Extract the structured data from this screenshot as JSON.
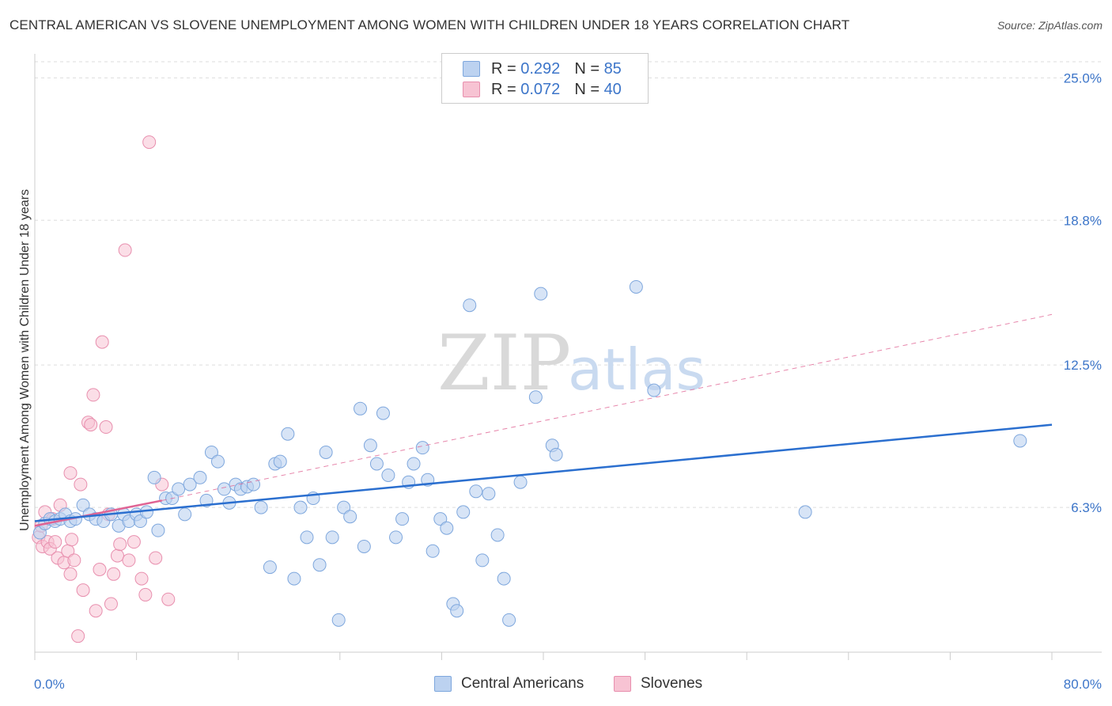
{
  "title": "CENTRAL AMERICAN VS SLOVENE UNEMPLOYMENT AMONG WOMEN WITH CHILDREN UNDER 18 YEARS CORRELATION CHART",
  "source": "Source: ZipAtlas.com",
  "watermark": {
    "zip": "ZIP",
    "atlas": "atlas"
  },
  "legend_top": [
    {
      "r_label": "R =",
      "r_value": "0.292",
      "n_label": "N =",
      "n_value": "85"
    },
    {
      "r_label": "R =",
      "r_value": "0.072",
      "n_label": "N =",
      "n_value": "40"
    }
  ],
  "chart_data": {
    "type": "scatter",
    "title": "CENTRAL AMERICAN VS SLOVENE UNEMPLOYMENT AMONG WOMEN WITH CHILDREN UNDER 18 YEARS CORRELATION CHART",
    "xlabel": "",
    "ylabel": "Unemployment Among Women with Children Under 18 years",
    "xlim": [
      0,
      80
    ],
    "ylim": [
      0,
      25.7
    ],
    "x_tick_labels": [
      "0.0%",
      "80.0%"
    ],
    "y_ticks": [
      6.3,
      12.5,
      18.8,
      25.0
    ],
    "y_tick_labels": [
      "6.3%",
      "12.5%",
      "18.8%",
      "25.0%"
    ],
    "grid": true,
    "legend_position": "bottom",
    "colors": {
      "blue_fill": "#bcd2f0",
      "blue_stroke": "#7ea7dd",
      "blue_line": "#2b6fcf",
      "pink_fill": "#f7c3d3",
      "pink_stroke": "#e88fae",
      "pink_line": "#e06494"
    },
    "series": [
      {
        "name": "Central Americans",
        "trend": {
          "x": [
            0,
            80
          ],
          "y": [
            5.7,
            9.9
          ],
          "dashed_to": null
        },
        "points": [
          [
            0.4,
            5.2
          ],
          [
            0.8,
            5.6
          ],
          [
            1.2,
            5.8
          ],
          [
            1.6,
            5.7
          ],
          [
            2,
            5.8
          ],
          [
            2.4,
            6.0
          ],
          [
            2.8,
            5.7
          ],
          [
            3.2,
            5.8
          ],
          [
            3.8,
            6.4
          ],
          [
            4.3,
            6.0
          ],
          [
            4.8,
            5.8
          ],
          [
            5.4,
            5.7
          ],
          [
            6.0,
            6.0
          ],
          [
            6.6,
            5.5
          ],
          [
            7.0,
            6.0
          ],
          [
            7.4,
            5.7
          ],
          [
            8.0,
            6.0
          ],
          [
            8.3,
            5.7
          ],
          [
            8.8,
            6.1
          ],
          [
            9.4,
            7.6
          ],
          [
            9.7,
            5.3
          ],
          [
            10.3,
            6.7
          ],
          [
            10.8,
            6.7
          ],
          [
            11.3,
            7.1
          ],
          [
            11.8,
            6.0
          ],
          [
            12.2,
            7.3
          ],
          [
            13.0,
            7.6
          ],
          [
            13.5,
            6.6
          ],
          [
            13.9,
            8.7
          ],
          [
            14.4,
            8.3
          ],
          [
            14.9,
            7.1
          ],
          [
            15.3,
            6.5
          ],
          [
            15.8,
            7.3
          ],
          [
            16.2,
            7.1
          ],
          [
            16.7,
            7.2
          ],
          [
            17.2,
            7.3
          ],
          [
            17.8,
            6.3
          ],
          [
            18.5,
            3.7
          ],
          [
            18.9,
            8.2
          ],
          [
            19.3,
            8.3
          ],
          [
            19.9,
            9.5
          ],
          [
            20.4,
            3.2
          ],
          [
            20.9,
            6.3
          ],
          [
            21.4,
            5.0
          ],
          [
            21.9,
            6.7
          ],
          [
            22.4,
            3.8
          ],
          [
            22.9,
            8.7
          ],
          [
            23.4,
            5.0
          ],
          [
            23.9,
            1.4
          ],
          [
            24.3,
            6.3
          ],
          [
            24.8,
            5.9
          ],
          [
            25.6,
            10.6
          ],
          [
            25.9,
            4.6
          ],
          [
            26.4,
            9.0
          ],
          [
            26.9,
            8.2
          ],
          [
            27.4,
            10.4
          ],
          [
            27.8,
            7.7
          ],
          [
            28.4,
            5.0
          ],
          [
            28.9,
            5.8
          ],
          [
            29.4,
            7.4
          ],
          [
            29.8,
            8.2
          ],
          [
            30.5,
            8.9
          ],
          [
            30.9,
            7.5
          ],
          [
            31.3,
            4.4
          ],
          [
            31.9,
            5.8
          ],
          [
            32.4,
            5.4
          ],
          [
            32.9,
            2.1
          ],
          [
            33.2,
            1.8
          ],
          [
            33.7,
            6.1
          ],
          [
            34.2,
            15.1
          ],
          [
            34.7,
            7.0
          ],
          [
            35.2,
            4.0
          ],
          [
            35.7,
            6.9
          ],
          [
            36.4,
            5.1
          ],
          [
            36.9,
            3.2
          ],
          [
            37.3,
            1.4
          ],
          [
            38.2,
            7.4
          ],
          [
            39.4,
            11.1
          ],
          [
            39.8,
            15.6
          ],
          [
            40.7,
            9.0
          ],
          [
            41.0,
            8.6
          ],
          [
            47.3,
            15.9
          ],
          [
            48.7,
            11.4
          ],
          [
            60.6,
            6.1
          ],
          [
            77.5,
            9.2
          ]
        ]
      },
      {
        "name": "Slovenes",
        "trend": {
          "x": [
            0,
            10
          ],
          "y": [
            5.5,
            6.6
          ],
          "dashed_to": [
            80,
            14.7
          ]
        },
        "points": [
          [
            0.3,
            5.0
          ],
          [
            0.5,
            5.5
          ],
          [
            0.6,
            4.6
          ],
          [
            0.8,
            6.1
          ],
          [
            1.0,
            4.8
          ],
          [
            1.2,
            4.5
          ],
          [
            1.4,
            5.8
          ],
          [
            1.6,
            4.8
          ],
          [
            1.8,
            4.1
          ],
          [
            2.0,
            6.4
          ],
          [
            2.3,
            3.9
          ],
          [
            2.6,
            4.4
          ],
          [
            2.8,
            3.4
          ],
          [
            2.8,
            7.8
          ],
          [
            2.9,
            4.9
          ],
          [
            3.1,
            4.0
          ],
          [
            3.4,
            0.7
          ],
          [
            3.6,
            7.3
          ],
          [
            3.8,
            2.7
          ],
          [
            4.2,
            10.0
          ],
          [
            4.4,
            9.9
          ],
          [
            4.6,
            11.2
          ],
          [
            4.8,
            1.8
          ],
          [
            5.1,
            3.6
          ],
          [
            5.3,
            13.5
          ],
          [
            5.6,
            9.8
          ],
          [
            5.8,
            6.0
          ],
          [
            6.0,
            2.1
          ],
          [
            6.2,
            3.4
          ],
          [
            6.5,
            4.2
          ],
          [
            6.7,
            4.7
          ],
          [
            7.1,
            17.5
          ],
          [
            7.4,
            4.0
          ],
          [
            7.8,
            4.8
          ],
          [
            8.4,
            3.2
          ],
          [
            8.7,
            2.5
          ],
          [
            9.0,
            22.2
          ],
          [
            9.5,
            4.1
          ],
          [
            10.0,
            7.3
          ],
          [
            10.5,
            2.3
          ]
        ]
      }
    ]
  },
  "legend_bottom": [
    "Central Americans",
    "Slovenes"
  ]
}
